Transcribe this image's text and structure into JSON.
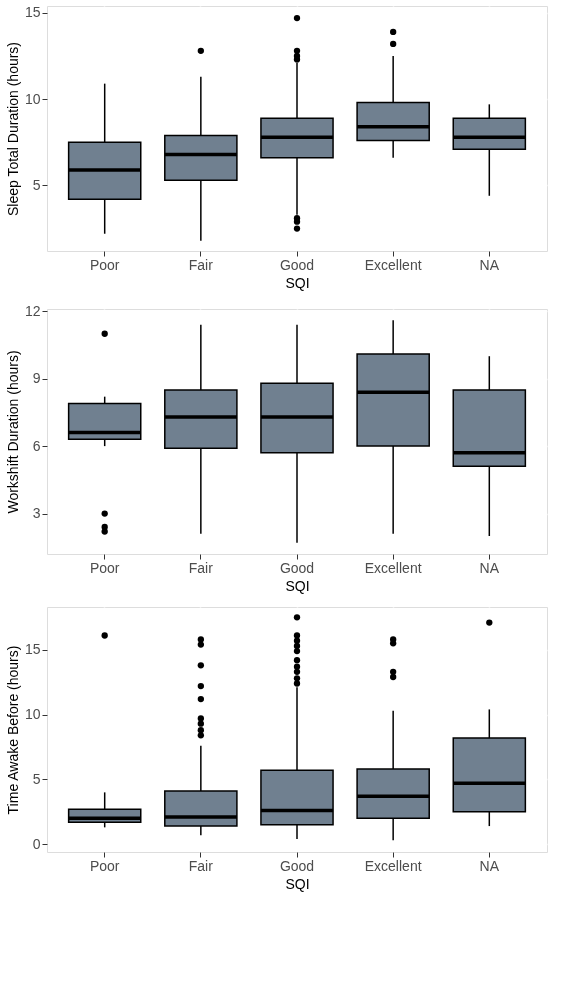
{
  "chart_data": [
    {
      "type": "box",
      "xlabel": "SQI",
      "ylabel": "Sleep Total Duration (hours)",
      "categories": [
        "Poor",
        "Fair",
        "Good",
        "Excellent",
        "NA"
      ],
      "ylim": [
        1.2,
        15.4
      ],
      "yticks": [
        5,
        10,
        15
      ],
      "grid": true,
      "series": [
        {
          "color": "#708090",
          "boxes": [
            {
              "low": 2.2,
              "q1": 4.2,
              "median": 5.9,
              "q3": 7.5,
              "high": 10.9
            },
            {
              "low": 1.8,
              "q1": 5.3,
              "median": 6.8,
              "q3": 7.9,
              "high": 11.3,
              "outliers": [
                12.8
              ]
            },
            {
              "low": 3.3,
              "q1": 6.6,
              "median": 7.8,
              "q3": 8.9,
              "high": 12.1,
              "outliers": [
                12.3,
                12.5,
                12.8,
                14.7,
                3.1,
                2.9,
                2.5
              ]
            },
            {
              "low": 6.6,
              "q1": 7.6,
              "median": 8.4,
              "q3": 9.8,
              "high": 12.5,
              "outliers": [
                13.2,
                13.9
              ]
            },
            {
              "low": 4.4,
              "q1": 7.1,
              "median": 7.8,
              "q3": 8.9,
              "high": 9.7
            }
          ]
        }
      ]
    },
    {
      "type": "box",
      "xlabel": "SQI",
      "ylabel": "Workshift Duration (hours)",
      "categories": [
        "Poor",
        "Fair",
        "Good",
        "Excellent",
        "NA"
      ],
      "ylim": [
        1.2,
        12.1
      ],
      "yticks": [
        3,
        6,
        9,
        12
      ],
      "grid": true,
      "series": [
        {
          "color": "#708090",
          "boxes": [
            {
              "low": 6.0,
              "q1": 6.3,
              "median": 6.6,
              "q3": 7.9,
              "high": 8.2,
              "outliers": [
                11.0,
                3.0,
                2.4,
                2.2
              ]
            },
            {
              "low": 2.1,
              "q1": 5.9,
              "median": 7.3,
              "q3": 8.5,
              "high": 11.4
            },
            {
              "low": 1.7,
              "q1": 5.7,
              "median": 7.3,
              "q3": 8.8,
              "high": 11.4
            },
            {
              "low": 2.1,
              "q1": 6.0,
              "median": 8.4,
              "q3": 10.1,
              "high": 11.6
            },
            {
              "low": 2.0,
              "q1": 5.1,
              "median": 5.7,
              "q3": 8.5,
              "high": 10.0
            }
          ]
        }
      ]
    },
    {
      "type": "box",
      "xlabel": "SQI",
      "ylabel": "Time Awake Before (hours)",
      "categories": [
        "Poor",
        "Fair",
        "Good",
        "Excellent",
        "NA"
      ],
      "ylim": [
        -0.6,
        18.3
      ],
      "yticks": [
        0,
        5,
        10,
        15
      ],
      "grid": true,
      "series": [
        {
          "color": "#708090",
          "boxes": [
            {
              "low": 1.3,
              "q1": 1.7,
              "median": 2.0,
              "q3": 2.7,
              "high": 4.0,
              "outliers": [
                16.1
              ]
            },
            {
              "low": 0.7,
              "q1": 1.4,
              "median": 2.1,
              "q3": 4.1,
              "high": 7.6,
              "outliers": [
                8.4,
                8.8,
                9.3,
                9.7,
                11.2,
                12.2,
                13.8,
                15.4,
                15.8
              ]
            },
            {
              "low": 0.4,
              "q1": 1.5,
              "median": 2.6,
              "q3": 5.7,
              "high": 12.1,
              "outliers": [
                12.4,
                12.8,
                13.3,
                13.7,
                14.2,
                14.9,
                15.3,
                15.7,
                16.1,
                17.5
              ]
            },
            {
              "low": 0.3,
              "q1": 2.0,
              "median": 3.7,
              "q3": 5.8,
              "high": 10.3,
              "outliers": [
                12.9,
                13.3,
                15.5,
                15.8
              ]
            },
            {
              "low": 1.4,
              "q1": 2.5,
              "median": 4.7,
              "q3": 8.2,
              "high": 10.4,
              "outliers": [
                17.1
              ]
            }
          ]
        }
      ]
    }
  ]
}
